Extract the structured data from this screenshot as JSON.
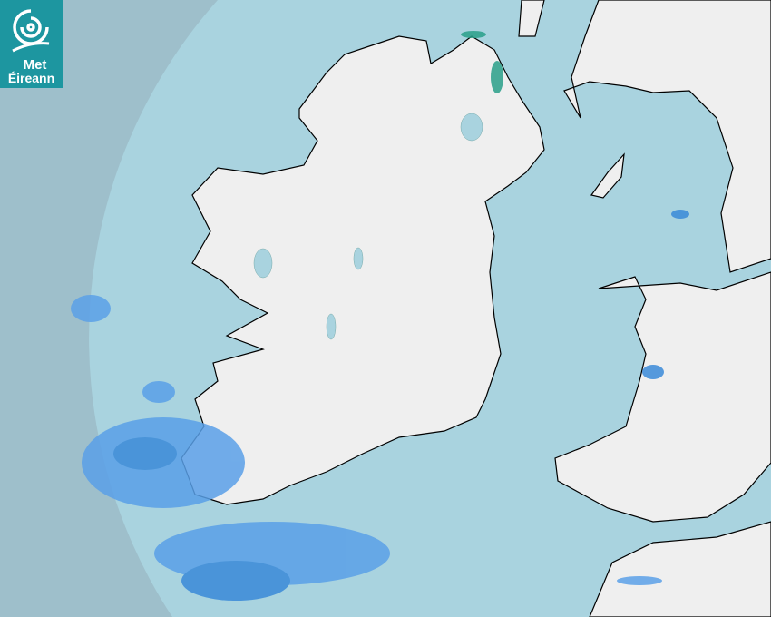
{
  "logo": {
    "line1": "Met",
    "line2": "Éireann",
    "icon": "swirl-logo-icon",
    "color": "#1d96a0"
  },
  "map": {
    "type": "rainfall-radar",
    "colors": {
      "outside_coverage": "#9ebfcb",
      "sea": "#a9d3df",
      "land": "#eeeeee",
      "coastline": "#000000",
      "lakes": "#a9d3df",
      "light_rain": "#5aa0e8",
      "moderate_rain": "#3a8ad8",
      "heavy_rain": "#2aa08a"
    }
  }
}
